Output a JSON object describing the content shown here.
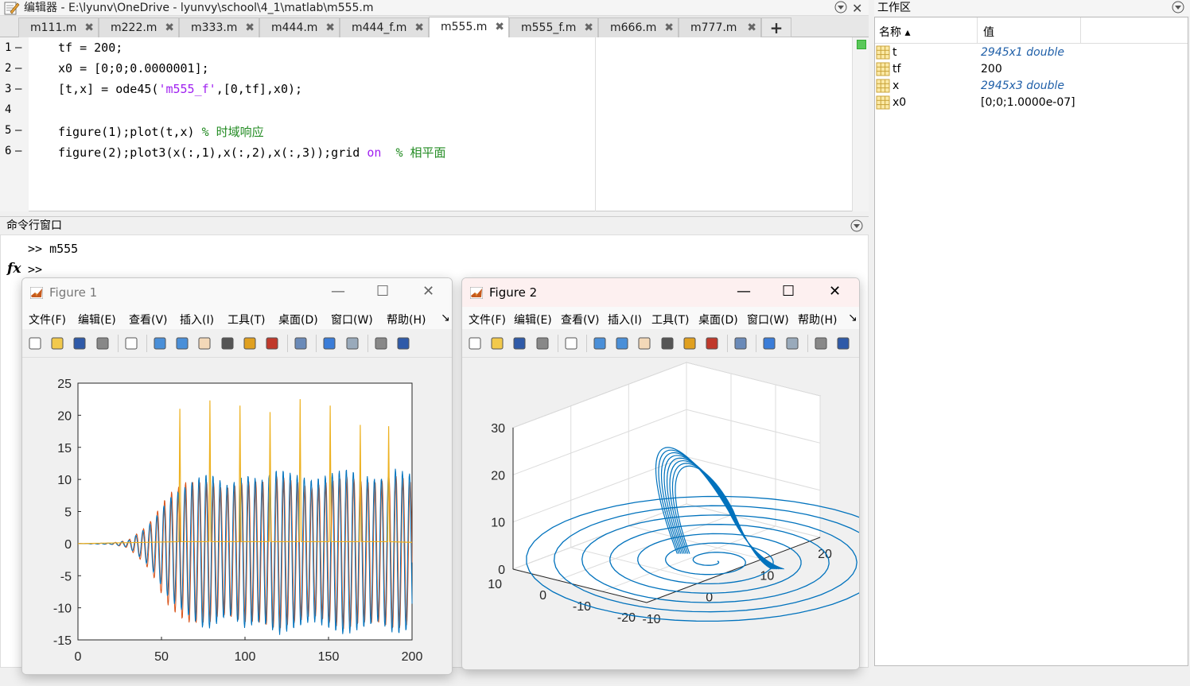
{
  "editor": {
    "title": "编辑器 - E:\\lyunv\\OneDrive - lyunvy\\school\\4_1\\matlab\\m555.m",
    "tabs": [
      {
        "label": "m111.m"
      },
      {
        "label": "m222.m"
      },
      {
        "label": "m333.m"
      },
      {
        "label": "m444.m"
      },
      {
        "label": "m444_f.m"
      },
      {
        "label": "m555.m"
      },
      {
        "label": "m555_f.m"
      },
      {
        "label": "m666.m"
      },
      {
        "label": "m777.m"
      }
    ],
    "active_tab": "m555.m",
    "add_tab": "+",
    "lines": [
      {
        "num": "1",
        "dash": "—"
      },
      {
        "num": "2",
        "dash": "—"
      },
      {
        "num": "3",
        "dash": "—"
      },
      {
        "num": "4",
        "dash": ""
      },
      {
        "num": "5",
        "dash": "—"
      },
      {
        "num": "6",
        "dash": "—"
      }
    ],
    "code": {
      "l1": "tf = 200;",
      "l2": "x0 = [0;0;0.0000001];",
      "l3a": "[t,x] = ode45(",
      "l3b": "'m555_f'",
      "l3c": ",[0,tf],x0);",
      "l5a": "figure(1);plot(t,x) ",
      "l5b": "% 时域响应",
      "l6a": "figure(2);plot3(x(:,1),x(:,2),x(:,3));grid ",
      "l6b": "on",
      "l6c": "  % 相平面"
    }
  },
  "command_window": {
    "title": "命令行窗口",
    "history": ">> m555",
    "prompt": ">>",
    "fx": "fx"
  },
  "workspace": {
    "title": "工作区",
    "col_name": "名称 ▴",
    "col_value": "值",
    "vars": [
      {
        "name": "t",
        "value": "2945x1 double",
        "italic": true
      },
      {
        "name": "tf",
        "value": "200",
        "italic": false
      },
      {
        "name": "x",
        "value": "2945x3 double",
        "italic": true
      },
      {
        "name": "x0",
        "value": "[0;0;1.0000e-07]",
        "italic": false
      }
    ]
  },
  "figure1": {
    "title": "Figure 1",
    "menu": [
      "文件(F)",
      "编辑(E)",
      "查看(V)",
      "插入(I)",
      "工具(T)",
      "桌面(D)",
      "窗口(W)",
      "帮助(H)"
    ]
  },
  "figure2": {
    "title": "Figure 2",
    "menu": [
      "文件(F)",
      "编辑(E)",
      "查看(V)",
      "插入(I)",
      "工具(T)",
      "桌面(D)",
      "窗口(W)",
      "帮助(H)"
    ]
  },
  "chart_data": [
    {
      "type": "line",
      "title": "",
      "xlabel": "",
      "ylabel": "",
      "xlim": [
        0,
        200
      ],
      "ylim": [
        -15,
        25
      ],
      "xticks": [
        0,
        50,
        100,
        150,
        200
      ],
      "yticks": [
        -15,
        -10,
        -5,
        0,
        5,
        10,
        15,
        20,
        25
      ],
      "grid": false,
      "series": [
        {
          "color": "#0072BD",
          "x": [
            0,
            20,
            30,
            35,
            40,
            45,
            50,
            55,
            60,
            65,
            70,
            75,
            80,
            85,
            90,
            100,
            110,
            120,
            130,
            140,
            150,
            160,
            170,
            180,
            190,
            200
          ],
          "amplitude": [
            0,
            0.1,
            0.5,
            1.5,
            2.5,
            4,
            6,
            8,
            9,
            10,
            11,
            12,
            12,
            11,
            10,
            12,
            11,
            13,
            12,
            11,
            12,
            13,
            12,
            11,
            13,
            12
          ],
          "note_period": 4.2
        },
        {
          "color": "#D95319",
          "x": [
            0,
            20,
            30,
            35,
            40,
            45,
            50,
            55,
            60,
            65,
            70,
            75,
            80,
            85,
            90,
            100,
            110,
            120,
            130,
            140,
            150,
            160,
            170,
            180,
            190,
            200
          ],
          "amplitude": [
            0,
            0.1,
            0.6,
            1.7,
            2.8,
            4.5,
            7,
            9,
            10,
            11,
            11,
            11,
            11,
            10,
            10,
            11,
            11,
            12,
            11,
            10,
            11,
            12,
            11,
            11,
            12,
            11
          ]
        },
        {
          "color": "#EDB120",
          "spikes_x": [
            61,
            79,
            97,
            115,
            133,
            151,
            169,
            186
          ],
          "spikes_y": [
            21,
            22.3,
            21.5,
            20.5,
            22.5,
            21.5,
            18.5,
            18.3
          ]
        }
      ]
    },
    {
      "type": "line",
      "title": "",
      "xlabel": "",
      "ylabel": "",
      "xlim": [
        -10,
        20
      ],
      "ylim": [
        -20,
        10
      ],
      "zlim": [
        0,
        30
      ],
      "xticks": [
        -10,
        0,
        10,
        20
      ],
      "yticks": [
        -20,
        -10,
        0,
        10
      ],
      "zticks": [
        0,
        10,
        20,
        30
      ],
      "grid": true,
      "series": [
        {
          "color": "#0072BD",
          "kind": "3d-spiral-attractor",
          "peak_z": 23
        }
      ]
    }
  ]
}
